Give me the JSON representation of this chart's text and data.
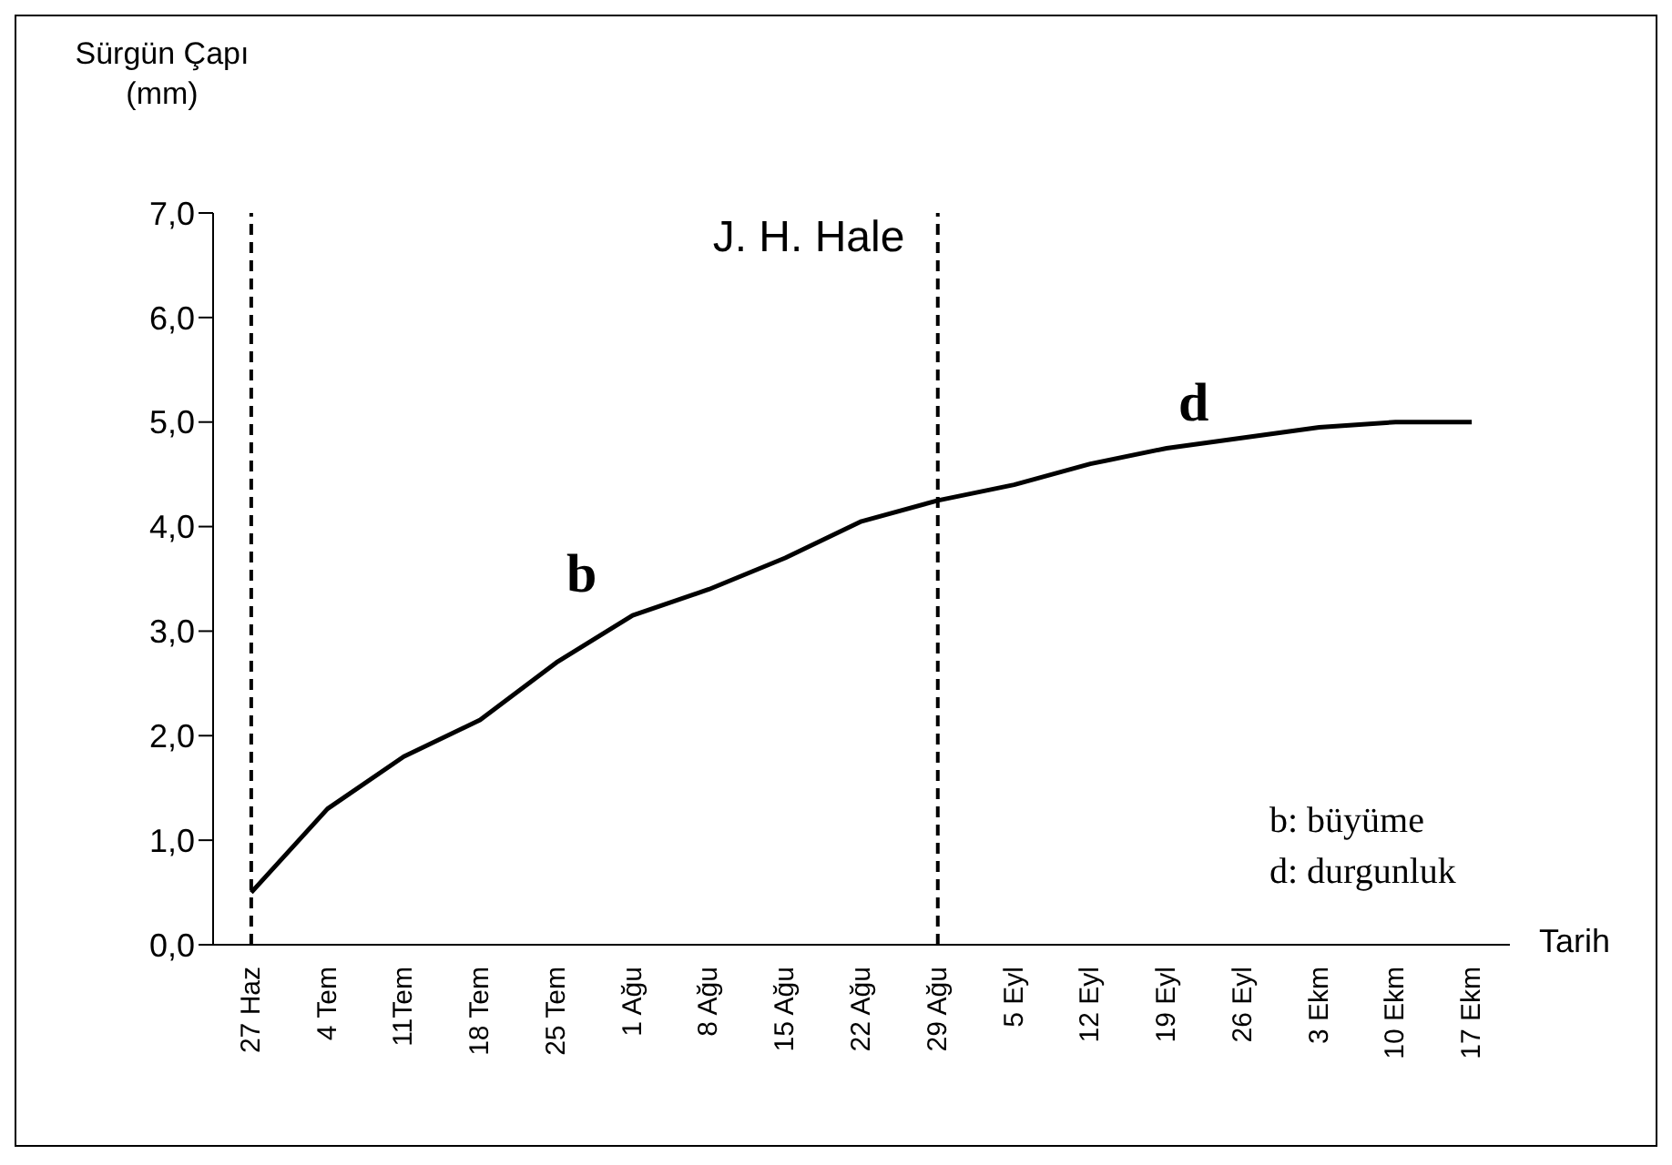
{
  "chart_data": {
    "type": "line",
    "title": "J. H. Hale",
    "ylabel": "Sürgün Çapı (mm)",
    "xlabel": "Tarih",
    "categories": [
      "27 Haz",
      "4 Tem",
      "11Tem",
      "18 Tem",
      "25 Tem",
      "1 Ağu",
      "8 Ağu",
      "15 Ağu",
      "22 Ağu",
      "29 Ağu",
      "5 Eyl",
      "12 Eyl",
      "19 Eyl",
      "26 Eyl",
      "3 Ekm",
      "10 Ekm",
      "17 Ekm"
    ],
    "series": [
      {
        "color": "#000000",
        "values": [
          0.5,
          1.3,
          1.8,
          2.15,
          2.7,
          3.15,
          3.4,
          3.7,
          4.05,
          4.25,
          4.4,
          4.6,
          4.75,
          4.85,
          4.95,
          5.0,
          5.0
        ]
      }
    ],
    "ylim": [
      0,
      7
    ],
    "yticks": [
      {
        "value": 0,
        "label": "0,0"
      },
      {
        "value": 1,
        "label": "1,0"
      },
      {
        "value": 2,
        "label": "2,0"
      },
      {
        "value": 3,
        "label": "3,0"
      },
      {
        "value": 4,
        "label": "4,0"
      },
      {
        "value": 5,
        "label": "5,0"
      },
      {
        "value": 6,
        "label": "6,0"
      },
      {
        "value": 7,
        "label": "7,0"
      }
    ],
    "ref_lines": [
      {
        "axis": "x",
        "value": "27 Haz",
        "line_style": "dashed",
        "color": "#000000"
      },
      {
        "axis": "x",
        "value": "29 Ağu",
        "line_style": "dashed",
        "color": "#000000"
      }
    ],
    "annotations": [
      "b",
      "d",
      "b: büyüme",
      "d: durgunluk"
    ],
    "grid": false,
    "legend": false,
    "marker": "none",
    "line_style": "solid"
  }
}
